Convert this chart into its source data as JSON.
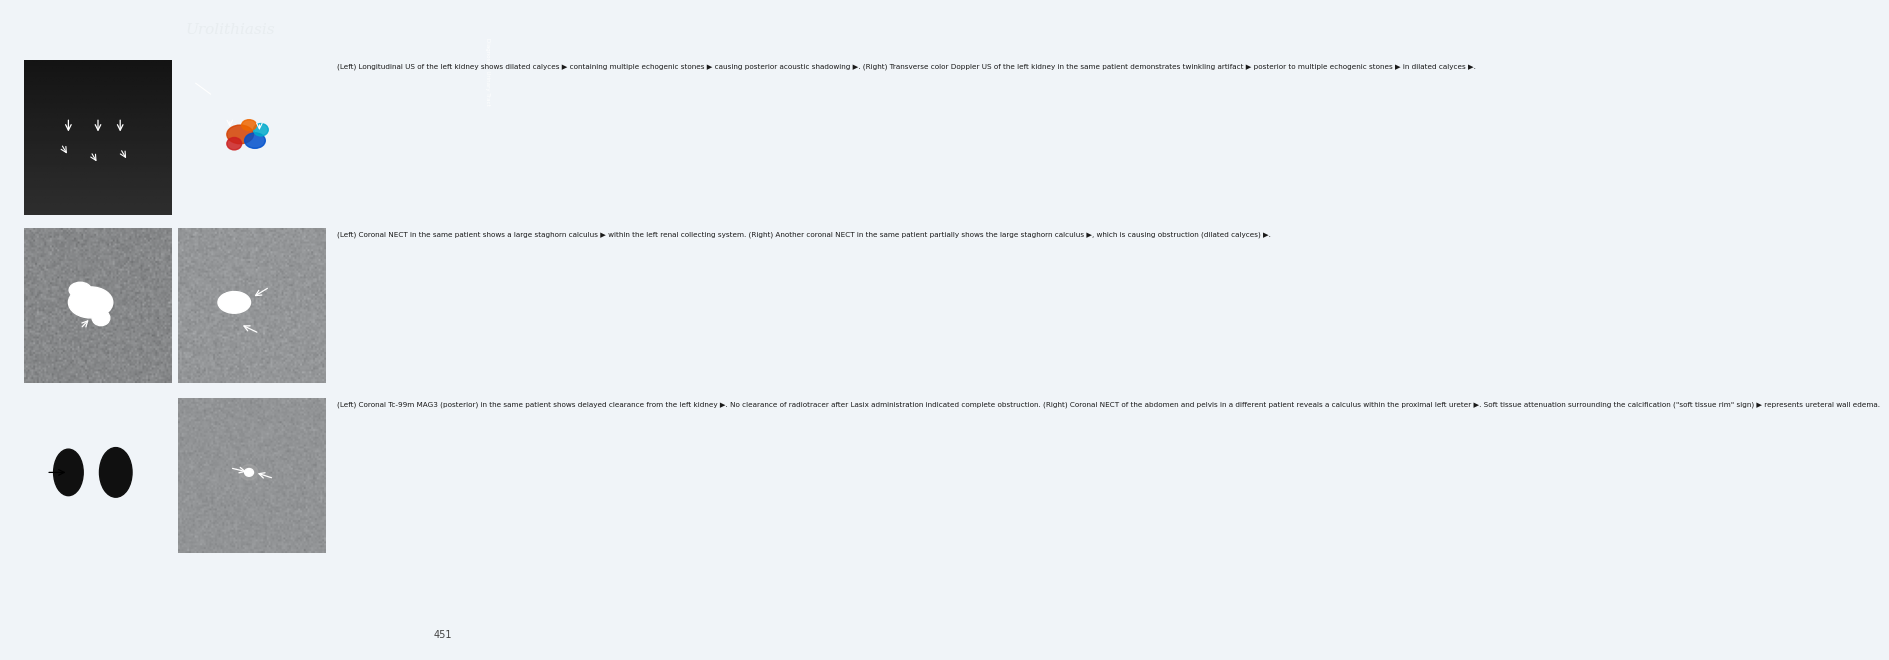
{
  "title": "Urolithiasis",
  "title_color": "#e8edf0",
  "header_bg": "#7d9aaa",
  "right_tab_purple_bg": "#8b5fa0",
  "right_tab_light_bg": "#d8e4ee",
  "right_tab_text": "Diagnoses: Urinary Tract",
  "page_bg": "#f0f4f8",
  "page_number": "451",
  "caption1": "(Left) Longitudinal US of the left kidney shows dilated calyces ▶ containing multiple echogenic stones ▶ causing posterior acoustic shadowing ▶. (Right) Transverse color Doppler US of the left kidney in the same patient demonstrates twinkling artifact ▶ posterior to multiple echogenic stones ▶ in dilated calyces ▶.",
  "caption2": "(Left) Coronal NECT in the same patient shows a large staghorn calculus ▶ within the left renal collecting system. (Right) Another coronal NECT in the same patient partially shows the large staghorn calculus ▶, which is causing obstruction (dilated calyces) ▶.",
  "caption3": "(Left) Coronal Tc-99m MAG3 (posterior) in the same patient shows delayed clearance from the left kidney ▶. No clearance of radiotracer after Lasix administration indicated complete obstruction. (Right) Coronal NECT of the abdomen and pelvis in a different patient reveals a calculus within the proximal left ureter ▶. Soft tissue attenuation surrounding the calcification (\"soft tissue rim\" sign) ▶ represents ureteral wall edema.",
  "caption_fontsize": 5.2,
  "title_fontsize": 11,
  "img1_left_bg": "#1e1e1e",
  "img1_right_bg": "#111111",
  "img2_left_bg": "#222222",
  "img2_right_bg": "#252525",
  "img3_left_bg": "#3c3c3c",
  "img3_right_bg": "#1c1c1c"
}
